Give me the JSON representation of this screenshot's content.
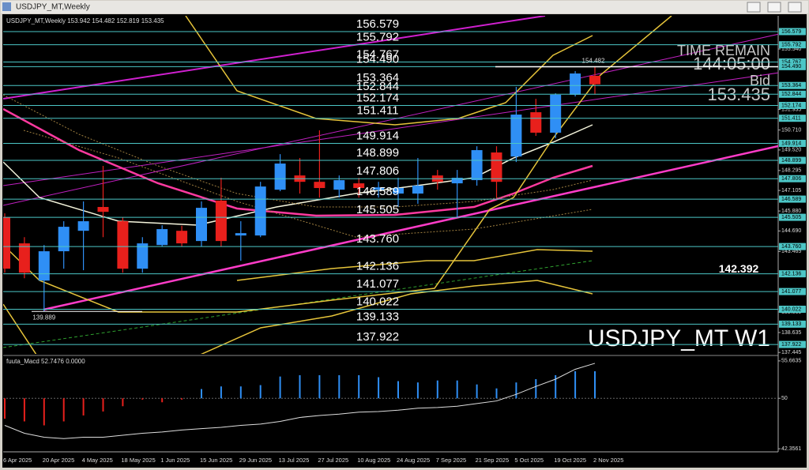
{
  "window_title": "USDJPY_MT,Weekly",
  "chart_data": {
    "type": "candlestick",
    "symbol_label": "USDJPY_MT,Weekly",
    "watermark": "USDJPY_MT W1",
    "categories": [
      "6 Apr 2025",
      null,
      "20 Apr 2025",
      null,
      "4 May 2025",
      null,
      "18 May 2025",
      null,
      "1 Jun 2025",
      null,
      "15 Jun 2025",
      null,
      "29 Jun 2025",
      null,
      "13 Jul 2025",
      null,
      "27 Jul 2025",
      null,
      "10 Aug 2025",
      null,
      "24 Aug 2025",
      null,
      "7 Sep 2025",
      null,
      "21 Sep 2025",
      null,
      "5 Oct 2025",
      null,
      "19 Oct 2025",
      null,
      "2 Nov 2025"
    ],
    "open": [
      145.5,
      143.95,
      141.73,
      143.48,
      144.7,
      146.12,
      145.27,
      142.44,
      143.85,
      144.7,
      144.09,
      146.5,
      144.42,
      144.42,
      147.15,
      148.0,
      147.62,
      147.15,
      147.53,
      147.15,
      146.92,
      146.92,
      148.0,
      147.53,
      147.72,
      149.37,
      149.13,
      151.77,
      150.55,
      152.81,
      153.942
    ],
    "high": [
      145.74,
      144.32,
      143.85,
      145.27,
      146.45,
      148.57,
      145.5,
      144.32,
      145.03,
      145.0,
      146.45,
      147.86,
      145.27,
      147.62,
      149.27,
      149.04,
      150.69,
      148.0,
      147.86,
      147.62,
      147.86,
      149.04,
      148.33,
      148.33,
      149.74,
      149.74,
      153.28,
      152.57,
      152.9,
      154.22,
      154.482
    ],
    "low": [
      142.2,
      141.87,
      139.889,
      142.44,
      142.35,
      144.32,
      142.2,
      142.2,
      143.76,
      143.76,
      143.76,
      143.76,
      142.91,
      144.32,
      147.06,
      146.92,
      146.68,
      146.68,
      146.68,
      146.68,
      146.12,
      146.31,
      147.15,
      145.5,
      147.39,
      146.68,
      148.8,
      150.36,
      150.22,
      152.71,
      152.819
    ],
    "close": [
      142.44,
      142.2,
      143.48,
      144.94,
      145.27,
      145.83,
      142.44,
      143.95,
      144.8,
      143.95,
      146.07,
      144.09,
      144.56,
      147.34,
      148.71,
      147.62,
      147.25,
      147.72,
      147.25,
      147.29,
      147.25,
      147.39,
      147.62,
      147.86,
      149.51,
      147.62,
      151.63,
      150.55,
      152.81,
      154.08,
      153.435
    ],
    "up_color": "#2f8ff5",
    "down_color": "#e8201c",
    "ylim": [
      137.36,
      157.52
    ],
    "yticks": [
      {
        "value": 155.54,
        "label": "155.540"
      },
      151.935,
      {
        "value": 150.71,
        "label": "150.710"
      },
      {
        "value": 149.52,
        "label": "149.520"
      },
      148.295,
      147.105,
      {
        "value": 145.88,
        "label": "145.880"
      },
      {
        "value": 144.69,
        "label": "144.690"
      },
      143.465,
      {
        "value": 139.86,
        "label": "139.860"
      },
      138.635,
      137.445
    ],
    "levels": [
      156.579,
      155.792,
      154.767,
      {
        "value": 154.49,
        "label": "154.490"
      },
      153.364,
      152.844,
      152.174,
      151.411,
      149.914,
      148.899,
      147.806,
      146.589,
      145.505,
      {
        "value": 143.76,
        "label": "143.760"
      },
      142.136,
      141.077,
      140.022,
      139.133,
      137.922
    ],
    "level_color": "#4cc6c6",
    "marker_value": 142.392,
    "timer": {
      "title": "TIME REMAIN",
      "time": "144:05:00",
      "bid_title": "Bid",
      "bid": 153.435
    },
    "macd": {
      "title": "fuuta_Macd",
      "main": 52.7476,
      "signal": {
        "value": 0,
        "label": "0.0000"
      },
      "ylim": [
        41.89,
        56.25
      ],
      "yticks": [
        55.6635,
        50,
        42.3561
      ],
      "histogram": [
        46.9,
        46.5,
        45.9,
        46.5,
        47.4,
        48.0,
        48.8,
        49.8,
        49.4,
        49.8,
        51.4,
        51.8,
        51.8,
        52.0,
        53.3,
        53.5,
        53.5,
        53.5,
        53.5,
        53.2,
        52.6,
        52.4,
        52.7,
        52.7,
        52.1,
        51.5,
        52.4,
        52.9,
        53.5,
        54.1,
        54.1
      ],
      "line": [
        45.9,
        44.7,
        44.1,
        43.9,
        44.1,
        44.1,
        44.4,
        44.7,
        44.9,
        45.2,
        45.4,
        45.6,
        45.9,
        46.1,
        46.5,
        47.1,
        47.4,
        47.6,
        47.9,
        48.0,
        48.2,
        48.5,
        48.6,
        48.8,
        49.2,
        49.6,
        50.6,
        51.8,
        52.9,
        54.4,
        55.3
      ]
    }
  }
}
